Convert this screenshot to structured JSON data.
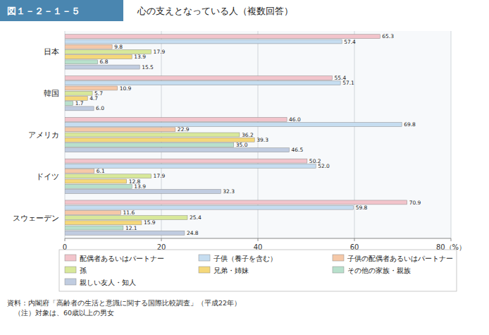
{
  "chart_data": {
    "type": "bar",
    "orientation": "horizontal",
    "title": "図１－２－１－５",
    "subtitle": "　心の支えとなっている人（複数回答）",
    "annotations": [
      "資料：内閣府「高齢者の生活と意識に関する国際比較調査」（平成22年）\n　（注）対象は、60歳以上の男女"
    ],
    "categories": [
      "日本",
      "韓国",
      "アメリカ",
      "ドイツ",
      "スウェーデン"
    ],
    "series": [
      {
        "name": "配偶者あるいはパートナー",
        "color": "#f2c4cb",
        "values": [
          65.3,
          55.4,
          46.0,
          50.2,
          70.9
        ],
        "value_labels": [
          "65.3",
          "55.4",
          "46.0",
          "50.2",
          "70.9"
        ]
      },
      {
        "name": "子供（養子を含む）",
        "color": "#c6ddf0",
        "values": [
          57.4,
          57.1,
          69.8,
          52.0,
          59.8
        ],
        "value_labels": [
          "57.4",
          "57.1",
          "69.8",
          "52.0",
          "59.8"
        ]
      },
      {
        "name": "子供の配偶者あるいはパートナー",
        "color": "#f5c8a8",
        "values": [
          9.8,
          10.9,
          22.9,
          6.1,
          11.6
        ]
      },
      {
        "name": "孫",
        "color": "#d8e89a",
        "values": [
          17.9,
          5.7,
          36.2,
          17.9,
          25.4
        ]
      },
      {
        "name": "兄弟・姉妹",
        "color": "#f5d87a",
        "values": [
          13.9,
          4.7,
          39.3,
          12.8,
          15.9
        ]
      },
      {
        "name": "その他の家族・親族",
        "color": "#b8e0cc",
        "values": [
          6.8,
          1.7,
          35.0,
          13.9,
          12.1
        ],
        "value_labels": [
          "6.8",
          "1.7",
          "35.0",
          "13.9",
          "12.1"
        ]
      },
      {
        "name": "親しい友人・知人",
        "color": "#c0cce0",
        "values": [
          15.5,
          6.0,
          46.5,
          32.3,
          24.8
        ],
        "value_labels": [
          "15.5",
          "6.0",
          "46.5",
          "32.3",
          "24.8"
        ]
      }
    ],
    "xlim": [
      0,
      80
    ],
    "xticks": [
      0,
      20,
      40,
      60,
      {
        "value": 80,
        "label": "80（%）"
      }
    ],
    "grid": true,
    "data_labels": true,
    "legend": "bottom"
  }
}
